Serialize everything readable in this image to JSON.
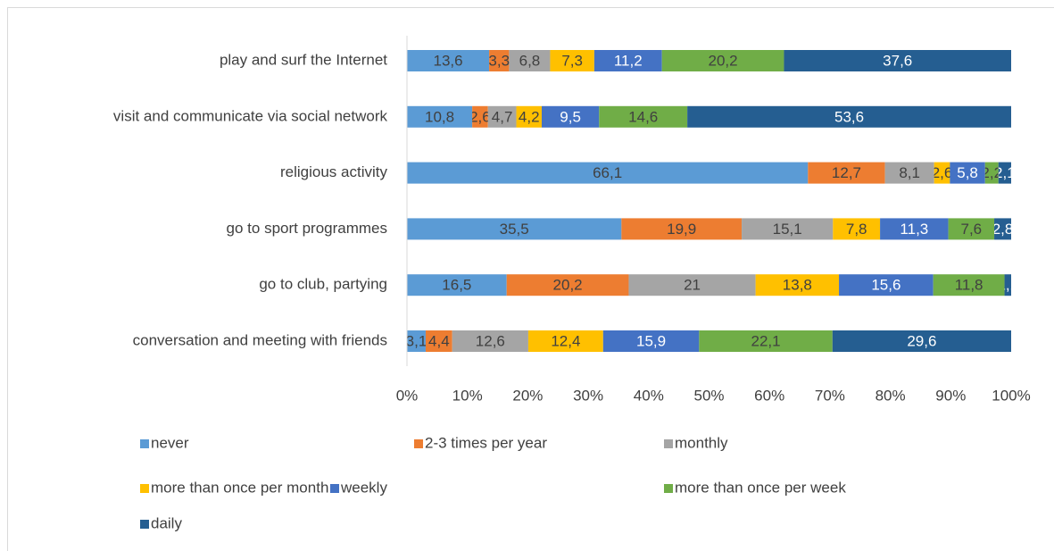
{
  "chart_data": {
    "type": "bar",
    "orientation": "horizontal",
    "stacking": "percent",
    "categories": [
      "play and surf the Internet",
      "visit and communicate via social network",
      "religious activity",
      "go to sport programmes",
      "go to club, partying",
      "conversation and meeting with friends"
    ],
    "series": [
      {
        "name": "never",
        "color": "#5b9bd5",
        "values": [
          13.6,
          10.8,
          66.1,
          35.5,
          16.5,
          3.1
        ],
        "value_labels": [
          "13,6",
          "10,8",
          "66,1",
          "35,5",
          "16,5",
          "3,1"
        ]
      },
      {
        "name": "2-3 times per year",
        "color": "#ed7d31",
        "values": [
          3.3,
          2.6,
          12.7,
          19.9,
          20.2,
          4.4
        ],
        "value_labels": [
          "3,3",
          "2,6",
          "12,7",
          "19,9",
          "20,2",
          "4,4"
        ]
      },
      {
        "name": "monthly",
        "color": "#a5a5a5",
        "values": [
          6.8,
          4.7,
          8.1,
          15.1,
          21,
          12.6
        ],
        "value_labels": [
          "6,8",
          "4,7",
          "8,1",
          "15,1",
          "21",
          "12,6"
        ]
      },
      {
        "name": "more than once per month",
        "color": "#ffc000",
        "values": [
          7.3,
          4.2,
          2.6,
          7.8,
          13.8,
          12.4
        ],
        "value_labels": [
          "7,3",
          "4,2",
          "2,6",
          "7,8",
          "13,8",
          "12,4"
        ]
      },
      {
        "name": "weekly",
        "color": "#4472c4",
        "values": [
          11.2,
          9.5,
          5.8,
          11.3,
          15.6,
          15.9
        ],
        "value_labels": [
          "11,2",
          "9,5",
          "5,8",
          "11,3",
          "15,6",
          "15,9"
        ]
      },
      {
        "name": "more than once per week",
        "color": "#70ad47",
        "values": [
          20.2,
          14.6,
          2.2,
          7.6,
          11.8,
          22.1
        ],
        "value_labels": [
          "20,2",
          "14,6",
          "2,2",
          "7,6",
          "11,8",
          "22,1"
        ]
      },
      {
        "name": "daily",
        "color": "#255e91",
        "values": [
          37.6,
          53.6,
          2.1,
          2.8,
          1.1,
          29.6
        ],
        "value_labels": [
          "37,6",
          "53,6",
          "2,1",
          "2,8",
          "1,1",
          "29,6"
        ]
      }
    ],
    "xlim": [
      0,
      100
    ],
    "xticks": [
      {
        "value": 0,
        "label": "0%"
      },
      {
        "value": 10,
        "label": "10%"
      },
      {
        "value": 20,
        "label": "20%"
      },
      {
        "value": 30,
        "label": "30%"
      },
      {
        "value": 40,
        "label": "40%"
      },
      {
        "value": 50,
        "label": "50%"
      },
      {
        "value": 60,
        "label": "60%"
      },
      {
        "value": 70,
        "label": "70%"
      },
      {
        "value": 80,
        "label": "80%"
      },
      {
        "value": 90,
        "label": "90%"
      },
      {
        "value": 100,
        "label": "100%"
      }
    ],
    "grid": false,
    "legend": "bottom"
  }
}
